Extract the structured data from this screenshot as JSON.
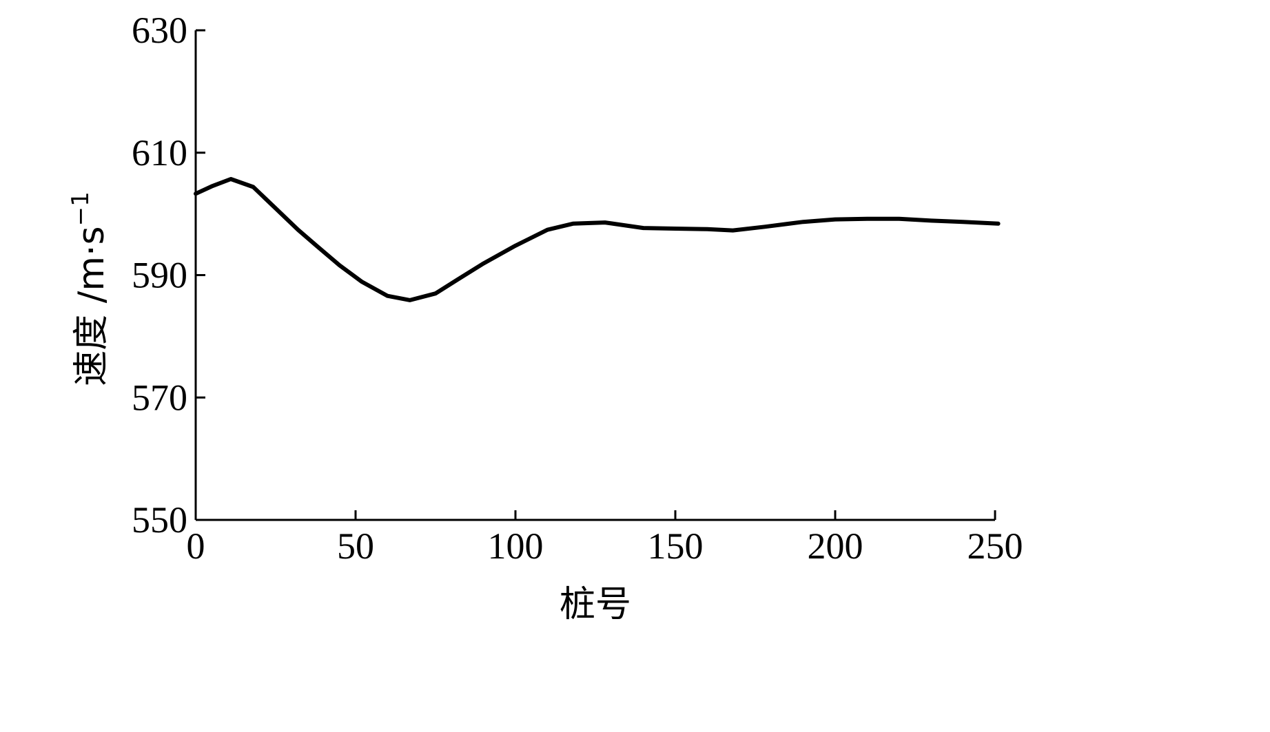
{
  "chart_data": {
    "type": "line",
    "title": "",
    "xlabel": "桩号",
    "ylabel_main": "速度 /m·s",
    "ylabel_sup": "−1",
    "xlim": [
      0,
      250
    ],
    "ylim": [
      550,
      630
    ],
    "xticks": [
      0,
      50,
      100,
      150,
      200,
      250
    ],
    "yticks": [
      550,
      570,
      590,
      610,
      630
    ],
    "grid": false,
    "line_color": "#000000",
    "series": [
      {
        "x": [
          0,
          5,
          11,
          18,
          25,
          32,
          38,
          45,
          52,
          60,
          67,
          75,
          82,
          90,
          100,
          110,
          118,
          128,
          140,
          150,
          160,
          168,
          178,
          190,
          200,
          210,
          220,
          230,
          240,
          251
        ],
        "y": [
          603.3,
          604.5,
          605.7,
          604.4,
          600.9,
          597.4,
          594.7,
          591.6,
          588.9,
          586.6,
          585.9,
          587.0,
          589.3,
          591.9,
          594.8,
          597.4,
          598.4,
          598.6,
          597.7,
          597.6,
          597.5,
          597.3,
          597.9,
          598.7,
          599.1,
          599.2,
          599.2,
          598.9,
          598.7,
          598.4
        ]
      }
    ]
  }
}
